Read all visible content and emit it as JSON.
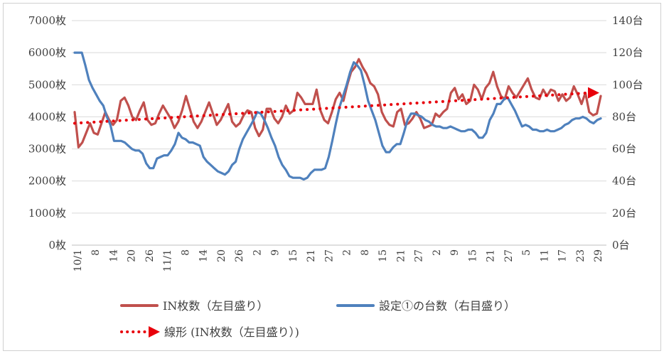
{
  "chart_data": {
    "type": "line",
    "title": "",
    "xlabel": "",
    "ylabel": "",
    "y_left": {
      "min": 0,
      "max": 7000,
      "step": 1000,
      "unit": "枚",
      "ticks": [
        "0枚",
        "1000枚",
        "2000枚",
        "3000枚",
        "4000枚",
        "5000枚",
        "6000枚",
        "7000枚"
      ]
    },
    "y_right": {
      "min": 0,
      "max": 140,
      "step": 20,
      "unit": "台",
      "ticks": [
        "0台",
        "20台",
        "40台",
        "60台",
        "80台",
        "100台",
        "120台",
        "140台"
      ]
    },
    "grid": true,
    "x_tick_labels": [
      "10/1",
      "8",
      "14",
      "20",
      "26",
      "11/1",
      "8",
      "14",
      "20",
      "26",
      "2",
      "9",
      "15",
      "21",
      "27",
      "2",
      "8",
      "15",
      "21",
      "27",
      "2",
      "9",
      "15",
      "21",
      "27",
      "5",
      "11",
      "17",
      "23",
      "29"
    ],
    "series": [
      {
        "name": "IN枚数（左目盛り）",
        "axis": "left",
        "color": "#c0504d",
        "values": [
          4150,
          3050,
          3200,
          3500,
          3800,
          3500,
          3450,
          3800,
          4150,
          3900,
          3750,
          3900,
          4500,
          4600,
          4350,
          4000,
          3900,
          4200,
          4450,
          3900,
          3750,
          3800,
          4100,
          4350,
          4150,
          3950,
          3650,
          3850,
          4200,
          4650,
          4250,
          3850,
          3650,
          3850,
          4150,
          4450,
          4100,
          3750,
          3900,
          4150,
          4400,
          3850,
          3700,
          3800,
          4050,
          4200,
          4150,
          3650,
          3400,
          3600,
          4250,
          4250,
          3950,
          3800,
          4000,
          4350,
          4100,
          4200,
          4750,
          4600,
          4400,
          4400,
          4400,
          4850,
          4200,
          3900,
          3800,
          4150,
          4550,
          4750,
          4500,
          5000,
          5400,
          5550,
          5800,
          5550,
          5350,
          5050,
          4950,
          4700,
          4150,
          3900,
          3750,
          3700,
          4150,
          4250,
          3750,
          3800,
          3950,
          4150,
          3950,
          3650,
          3700,
          3750,
          4100,
          4000,
          4150,
          4250,
          4750,
          4900,
          4550,
          4700,
          4400,
          4500,
          5000,
          4850,
          4550,
          4900,
          5050,
          5400,
          4950,
          4650,
          4550,
          4950,
          4750,
          4600,
          4800,
          5000,
          5200,
          4850,
          4600,
          4550,
          4850,
          4650,
          4850,
          4800,
          4500,
          4700,
          4500,
          4600,
          4950,
          4700,
          4400,
          4750,
          4150,
          4050,
          4100,
          4650
        ]
      },
      {
        "name": "設定①の台数（右目盛り）",
        "axis": "right",
        "color": "#4f81bd",
        "values": [
          120,
          120,
          120,
          112,
          103,
          98,
          94,
          90,
          87,
          80,
          75,
          65,
          65,
          65,
          64,
          62,
          60,
          59,
          59,
          57,
          51,
          48,
          48,
          54,
          55,
          56,
          56,
          59,
          63,
          70,
          67,
          66,
          64,
          64,
          63,
          62,
          55,
          52,
          50,
          48,
          46,
          45,
          44,
          46,
          50,
          52,
          60,
          66,
          70,
          74,
          78,
          83,
          82,
          78,
          73,
          67,
          62,
          55,
          50,
          47,
          43,
          42,
          42,
          42,
          41,
          42,
          45,
          47,
          47,
          47,
          48,
          55,
          65,
          76,
          86,
          93,
          100,
          108,
          114,
          112,
          109,
          100,
          90,
          84,
          78,
          70,
          62,
          58,
          58,
          61,
          63,
          63,
          70,
          78,
          82,
          82,
          81,
          80,
          78,
          77,
          75,
          74,
          74,
          73,
          73,
          74,
          73,
          72,
          71,
          71,
          72,
          72,
          70,
          67,
          67,
          70,
          78,
          82,
          88,
          88,
          91,
          92,
          88,
          84,
          79,
          74,
          75,
          74,
          72,
          72,
          71,
          71,
          72,
          71,
          71,
          72,
          73,
          75,
          76,
          78,
          79,
          79,
          80,
          79,
          77,
          76,
          78,
          79
        ],
        "values_note": ""
      },
      {
        "name": "線形 (IN枚数（左目盛り）)",
        "axis": "left",
        "type": "trendline",
        "color": "#e8000b",
        "start": 3800,
        "end": 4750
      }
    ],
    "legend": {
      "placement": "bottom",
      "entries": [
        "IN枚数（左目盛り）",
        "設定①の台数（右目盛り）",
        "線形 (IN枚数（左目盛り）)"
      ]
    }
  }
}
